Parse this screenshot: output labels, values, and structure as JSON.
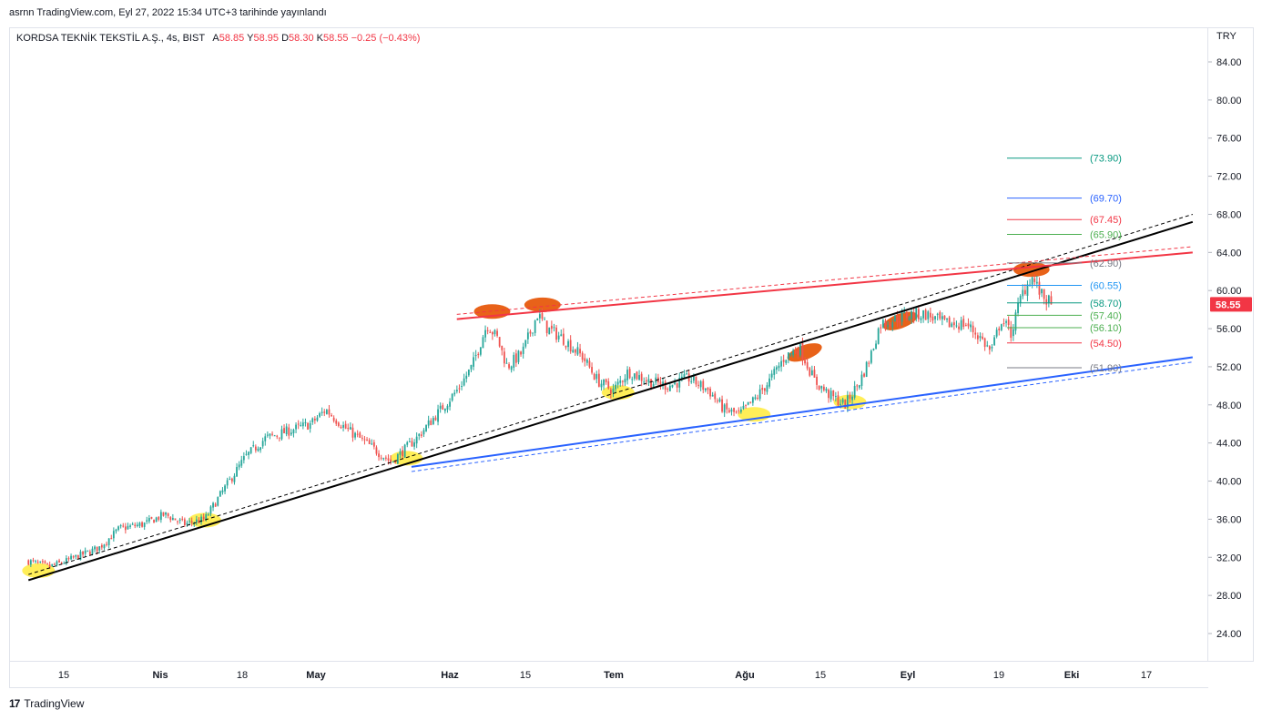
{
  "header": {
    "publish_text": "asrnn TradingView.com, Eyl 27, 2022 15:34 UTC+3 tarihinde yayınlandı",
    "symbol_title": "KORDSA TEKNİK TEKSTİL A.Ş., 4s, BIST",
    "ohlc": [
      {
        "label": "A",
        "value": "58.85"
      },
      {
        "label": "Y",
        "value": "58.95"
      },
      {
        "label": "D",
        "value": "58.30"
      },
      {
        "label": "K",
        "value": "58.55"
      }
    ],
    "change_text": "−0.25 (−0.43%)"
  },
  "price_axis": {
    "currency": "TRY",
    "ticks": [
      "84.00",
      "80.00",
      "76.00",
      "72.00",
      "68.00",
      "64.00",
      "60.00",
      "56.00",
      "52.00",
      "48.00",
      "44.00",
      "40.00",
      "36.00",
      "32.00",
      "28.00",
      "24.00"
    ],
    "last_price": "58.55",
    "last_price_color": "#f23645"
  },
  "time_axis": {
    "labels": [
      "15",
      "Nis",
      "18",
      "May",
      "Haz",
      "15",
      "Tem",
      "Ağu",
      "15",
      "Eyl",
      "19",
      "Eki",
      "17"
    ]
  },
  "brand": {
    "logo_text": "17",
    "name": "TradingView"
  },
  "chart_data": {
    "type": "candlestick",
    "ylim": [
      22,
      86
    ],
    "grid": false,
    "last_price": 58.55,
    "price_path": [
      {
        "x": "Mar 8",
        "y": 31.6
      },
      {
        "x": "Mar 12",
        "y": 31.0
      },
      {
        "x": "Mar 15",
        "y": 31.5
      },
      {
        "x": "Mar 22",
        "y": 33.0
      },
      {
        "x": "Mar 26",
        "y": 35.0
      },
      {
        "x": "Mar 31",
        "y": 35.5
      },
      {
        "x": "Apr 4",
        "y": 36.5
      },
      {
        "x": "Apr 8",
        "y": 35.5
      },
      {
        "x": "Apr 12",
        "y": 36.0
      },
      {
        "x": "Apr 15",
        "y": 38.5
      },
      {
        "x": "Apr 20",
        "y": 42.5
      },
      {
        "x": "Apr 24",
        "y": 44.5
      },
      {
        "x": "Apr 27",
        "y": 45.0
      },
      {
        "x": "May 3",
        "y": 46.0
      },
      {
        "x": "May 6",
        "y": 47.5
      },
      {
        "x": "May 10",
        "y": 45.5
      },
      {
        "x": "May 14",
        "y": 44.0
      },
      {
        "x": "May 19",
        "y": 42.0
      },
      {
        "x": "May 24",
        "y": 44.5
      },
      {
        "x": "May 28",
        "y": 47.0
      },
      {
        "x": "Jun 1",
        "y": 49.5
      },
      {
        "x": "Jun 4",
        "y": 52.0
      },
      {
        "x": "Jun 7",
        "y": 56.5
      },
      {
        "x": "Jun 9",
        "y": 55.0
      },
      {
        "x": "Jun 11",
        "y": 52.0
      },
      {
        "x": "Jun 14",
        "y": 53.5
      },
      {
        "x": "Jun 17",
        "y": 57.5
      },
      {
        "x": "Jun 19",
        "y": 56.0
      },
      {
        "x": "Jun 22",
        "y": 55.0
      },
      {
        "x": "Jun 26",
        "y": 53.0
      },
      {
        "x": "Jun 29",
        "y": 50.5
      },
      {
        "x": "Jul 2",
        "y": 49.5
      },
      {
        "x": "Jul 5",
        "y": 51.5
      },
      {
        "x": "Jul 9",
        "y": 50.5
      },
      {
        "x": "Jul 13",
        "y": 50.0
      },
      {
        "x": "Jul 17",
        "y": 50.8
      },
      {
        "x": "Jul 21",
        "y": 49.5
      },
      {
        "x": "Jul 24",
        "y": 47.5
      },
      {
        "x": "Jul 27",
        "y": 47.0
      },
      {
        "x": "Jul 30",
        "y": 48.5
      },
      {
        "x": "Aug 2",
        "y": 50.5
      },
      {
        "x": "Aug 5",
        "y": 53.0
      },
      {
        "x": "Aug 8",
        "y": 54.0
      },
      {
        "x": "Aug 11",
        "y": 50.5
      },
      {
        "x": "Aug 14",
        "y": 49.0
      },
      {
        "x": "Aug 17",
        "y": 48.0
      },
      {
        "x": "Aug 20",
        "y": 50.5
      },
      {
        "x": "Aug 22",
        "y": 53.0
      },
      {
        "x": "Aug 24",
        "y": 56.5
      },
      {
        "x": "Aug 27",
        "y": 57.0
      },
      {
        "x": "Aug 30",
        "y": 57.5
      },
      {
        "x": "Sep 2",
        "y": 57.5
      },
      {
        "x": "Sep 6",
        "y": 56.5
      },
      {
        "x": "Sep 10",
        "y": 56.5
      },
      {
        "x": "Sep 13",
        "y": 55.0
      },
      {
        "x": "Sep 15",
        "y": 53.5
      },
      {
        "x": "Sep 17",
        "y": 57.0
      },
      {
        "x": "Sep 19",
        "y": 55.5
      },
      {
        "x": "Sep 21",
        "y": 59.5
      },
      {
        "x": "Sep 23",
        "y": 61.5
      },
      {
        "x": "Sep 25",
        "y": 59.5
      },
      {
        "x": "Sep 27",
        "y": 58.55
      }
    ],
    "trendlines": [
      {
        "color": "#000000",
        "style": "solid",
        "from": {
          "x": "Mar 8",
          "y": 29.6
        },
        "to": {
          "x": "Oct 25",
          "y": 67.2
        }
      },
      {
        "color": "#000000",
        "style": "dashed",
        "from": {
          "x": "Mar 8",
          "y": 30.2
        },
        "to": {
          "x": "Oct 25",
          "y": 68.0
        }
      },
      {
        "color": "#f23645",
        "style": "solid",
        "from": {
          "x": "Jun 1",
          "y": 57.0
        },
        "to": {
          "x": "Oct 25",
          "y": 64.0
        }
      },
      {
        "color": "#f23645",
        "style": "dashed",
        "from": {
          "x": "Jun 1",
          "y": 57.5
        },
        "to": {
          "x": "Oct 25",
          "y": 64.6
        }
      },
      {
        "color": "#2962ff",
        "style": "solid",
        "from": {
          "x": "May 23",
          "y": 41.5
        },
        "to": {
          "x": "Oct 25",
          "y": 53.0
        }
      },
      {
        "color": "#2962ff",
        "style": "dashed",
        "from": {
          "x": "May 23",
          "y": 41.0
        },
        "to": {
          "x": "Oct 25",
          "y": 52.5
        }
      }
    ],
    "levels": [
      {
        "label": "(73.90)",
        "value": 73.9,
        "color": "#089981"
      },
      {
        "label": "(69.70)",
        "value": 69.7,
        "color": "#2962ff"
      },
      {
        "label": "(67.45)",
        "value": 67.45,
        "color": "#f23645"
      },
      {
        "label": "(65.90)",
        "value": 65.9,
        "color": "#4caf50"
      },
      {
        "label": "(62.90)",
        "value": 62.9,
        "color": "#787b86"
      },
      {
        "label": "(60.55)",
        "value": 60.55,
        "color": "#2196f3"
      },
      {
        "label": "(58.70)",
        "value": 58.7,
        "color": "#089981"
      },
      {
        "label": "(57.40)",
        "value": 57.4,
        "color": "#4caf50"
      },
      {
        "label": "(56.10)",
        "value": 56.1,
        "color": "#4caf50"
      },
      {
        "label": "(54.50)",
        "value": 54.5,
        "color": "#f23645"
      },
      {
        "label": "(51.90)",
        "value": 51.9,
        "color": "#787b86"
      }
    ],
    "highlights": [
      {
        "kind": "support",
        "color": "#ffeb3b",
        "x": "Mar 10",
        "y": 30.6
      },
      {
        "kind": "support",
        "color": "#ffeb3b",
        "x": "Apr 12",
        "y": 35.9
      },
      {
        "kind": "support",
        "color": "#ffeb3b",
        "x": "May 22",
        "y": 42.4
      },
      {
        "kind": "support",
        "color": "#ffeb3b",
        "x": "Jul 3",
        "y": 49.3
      },
      {
        "kind": "support",
        "color": "#ffeb3b",
        "x": "Jul 30",
        "y": 47.0
      },
      {
        "kind": "support",
        "color": "#ffeb3b",
        "x": "Aug 18",
        "y": 48.3
      },
      {
        "kind": "resistance",
        "color": "#e65100",
        "x": "Jun 8",
        "y": 57.8
      },
      {
        "kind": "resistance",
        "color": "#e65100",
        "x": "Jun 18",
        "y": 58.5
      },
      {
        "kind": "resistance",
        "color": "#e65100",
        "x": "Aug 9",
        "y": 53.5
      },
      {
        "kind": "resistance",
        "color": "#e65100",
        "x": "Aug 28",
        "y": 56.8
      },
      {
        "kind": "resistance",
        "color": "#e65100",
        "x": "Sep 23",
        "y": 62.2
      }
    ]
  }
}
